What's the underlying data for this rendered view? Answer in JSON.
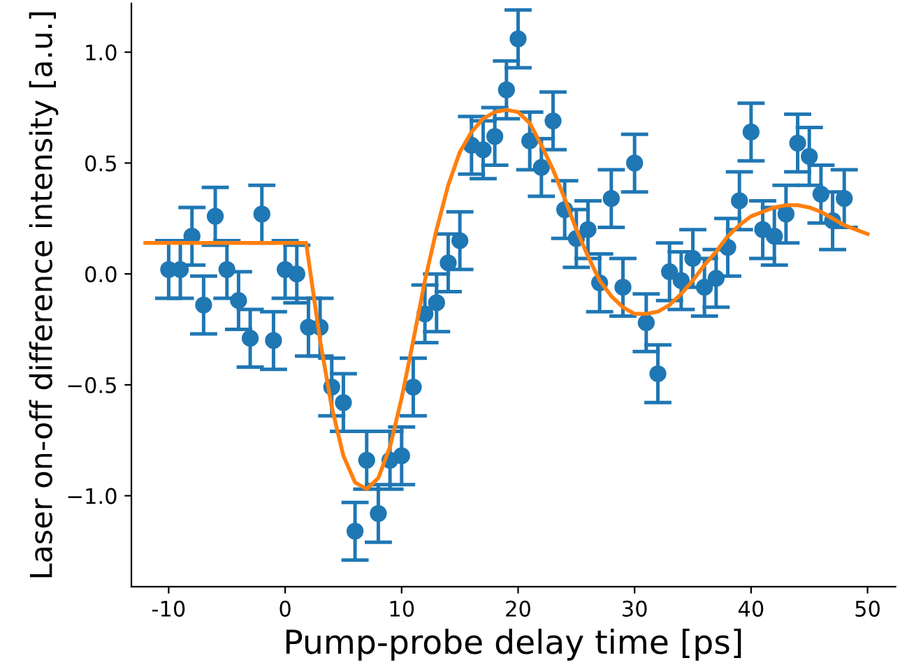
{
  "chart_data": {
    "type": "scatter",
    "xlabel": "Pump-probe delay time [ps]",
    "ylabel": "Laser on-off difference intensity [a.u.]",
    "xlim": [
      -13.2,
      52.4
    ],
    "ylim": [
      -1.41,
      1.22
    ],
    "xticks": [
      -10,
      0,
      10,
      20,
      30,
      40,
      50
    ],
    "yticks": [
      {
        "value": -1.0,
        "label": "−1.0"
      },
      {
        "value": -0.5,
        "label": "−0.5"
      },
      {
        "value": 0.0,
        "label": "0.0"
      },
      {
        "value": 0.5,
        "label": "0.5"
      },
      {
        "value": 1.0,
        "label": "1.0"
      }
    ],
    "grid": false,
    "marker": "circle",
    "series": [
      {
        "color": "#1f77b4",
        "x": [
          -10,
          -9,
          -8,
          -7,
          -6,
          -5,
          -4,
          -3,
          -2,
          -1,
          0,
          1,
          2,
          3,
          4,
          5,
          6,
          7,
          8,
          9,
          10,
          11,
          12,
          13,
          14,
          15,
          16,
          17,
          18,
          19,
          20,
          21,
          22,
          23,
          24,
          25,
          26,
          27,
          28,
          29,
          30,
          31,
          32,
          33,
          34,
          35,
          36,
          37,
          38,
          39,
          40,
          41,
          42,
          43,
          44,
          45,
          46,
          47,
          48
        ],
        "values": [
          0.02,
          0.02,
          0.17,
          -0.14,
          0.26,
          0.02,
          -0.12,
          -0.29,
          0.27,
          -0.3,
          0.02,
          0.0,
          -0.24,
          -0.24,
          -0.51,
          -0.58,
          -1.16,
          -0.84,
          -1.08,
          -0.84,
          -0.82,
          -0.51,
          -0.18,
          -0.13,
          0.05,
          0.15,
          0.58,
          0.56,
          0.62,
          0.83,
          1.06,
          0.6,
          0.48,
          0.69,
          0.29,
          0.16,
          0.2,
          -0.04,
          0.34,
          -0.06,
          0.5,
          -0.22,
          -0.45,
          0.01,
          -0.03,
          0.07,
          -0.06,
          -0.02,
          0.12,
          0.33,
          0.64,
          0.2,
          0.17,
          0.27,
          0.59,
          0.53,
          0.36,
          0.24,
          0.34
        ],
        "errors": [
          0.13,
          0.13,
          0.13,
          0.13,
          0.13,
          0.13,
          0.13,
          0.13,
          0.13,
          0.13,
          0.13,
          0.13,
          0.13,
          0.13,
          0.13,
          0.13,
          0.13,
          0.13,
          0.13,
          0.13,
          0.13,
          0.13,
          0.13,
          0.13,
          0.13,
          0.13,
          0.13,
          0.13,
          0.13,
          0.13,
          0.13,
          0.13,
          0.13,
          0.13,
          0.13,
          0.13,
          0.13,
          0.13,
          0.13,
          0.13,
          0.13,
          0.13,
          0.13,
          0.13,
          0.13,
          0.13,
          0.13,
          0.13,
          0.13,
          0.13,
          0.13,
          0.13,
          0.13,
          0.13,
          0.13,
          0.13,
          0.13,
          0.13,
          0.13
        ]
      },
      {
        "type": "line",
        "color": "#ff7f0e",
        "marker": "none",
        "x": [
          -12,
          1.8,
          3,
          4,
          5,
          6,
          7,
          8,
          9,
          10,
          11,
          12,
          13,
          14,
          15,
          16,
          17,
          18,
          19,
          20,
          21,
          22,
          23,
          24,
          25,
          26,
          27,
          28,
          29,
          30,
          31,
          32,
          33,
          34,
          35,
          36,
          37,
          38,
          39,
          40,
          41,
          42,
          43,
          44,
          45,
          46,
          47,
          48,
          49,
          50
        ],
        "values": [
          0.14,
          0.14,
          -0.3,
          -0.6,
          -0.82,
          -0.94,
          -0.97,
          -0.92,
          -0.78,
          -0.56,
          -0.3,
          -0.03,
          0.2,
          0.4,
          0.55,
          0.64,
          0.7,
          0.73,
          0.74,
          0.73,
          0.68,
          0.58,
          0.47,
          0.34,
          0.2,
          0.08,
          -0.03,
          -0.1,
          -0.15,
          -0.18,
          -0.18,
          -0.17,
          -0.14,
          -0.09,
          -0.03,
          0.04,
          0.1,
          0.17,
          0.22,
          0.26,
          0.28,
          0.3,
          0.31,
          0.31,
          0.3,
          0.28,
          0.25,
          0.22,
          0.2,
          0.18
        ]
      }
    ]
  }
}
